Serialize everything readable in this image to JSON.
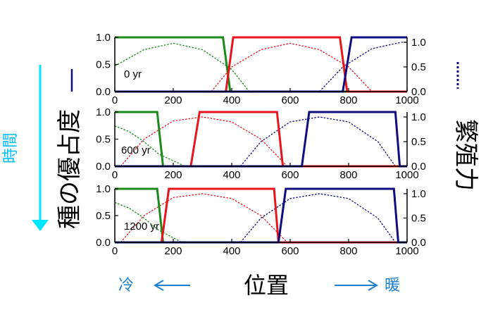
{
  "labels": {
    "time": "時間",
    "y_left": "種の優占度",
    "y_right": "繁殖力",
    "x_axis": "位置",
    "cold": "冷",
    "warm": "暖"
  },
  "colors": {
    "species_a": "#1a8a1a",
    "species_b": "#e8141c",
    "species_c": "#0d0d80",
    "time_arrow": "#00e5ff",
    "cold_warm": "#1a7fd0"
  },
  "chart_data": [
    {
      "type": "line",
      "annotation": "0 yr",
      "xlim": [
        0,
        1000
      ],
      "ylim_left": [
        0,
        1
      ],
      "ylim_right": [
        0,
        1.1
      ],
      "x_ticks": [
        "0",
        "200",
        "400",
        "600",
        "800",
        "1000"
      ],
      "y_ticks_left": [
        "0.0",
        "0.5",
        "1.0"
      ],
      "y_ticks_right": [
        "0.0",
        "0.5",
        "1.0"
      ],
      "dominance": [
        {
          "name": "",
          "color": "#1a8a1a",
          "x": [
            0,
            370,
            395,
            1000
          ],
          "y": [
            1,
            1,
            0,
            0
          ]
        },
        {
          "name": "",
          "color": "#e8141c",
          "x": [
            0,
            380,
            405,
            770,
            795,
            1000
          ],
          "y": [
            0,
            0,
            1,
            1,
            0,
            0
          ]
        },
        {
          "name": "",
          "color": "#0d0d80",
          "x": [
            0,
            780,
            810,
            1000
          ],
          "y": [
            0,
            0,
            1,
            1
          ]
        }
      ],
      "fecundity": [
        {
          "name": "",
          "color": "#1a8a1a",
          "x": [
            0,
            100,
            200,
            300,
            400,
            460
          ],
          "y": [
            0.52,
            0.85,
            0.98,
            0.85,
            0.45,
            0.0
          ]
        },
        {
          "name": "",
          "color": "#e8141c",
          "x": [
            330,
            400,
            500,
            600,
            700,
            800,
            880
          ],
          "y": [
            0.0,
            0.5,
            0.85,
            0.98,
            0.85,
            0.5,
            0.0
          ]
        },
        {
          "name": "",
          "color": "#0d0d80",
          "x": [
            700,
            780,
            880,
            980,
            1000
          ],
          "y": [
            0.0,
            0.5,
            0.87,
            1.0,
            1.0
          ]
        }
      ]
    },
    {
      "type": "line",
      "annotation": "600 yr",
      "xlim": [
        0,
        1000
      ],
      "ylim_left": [
        0,
        1
      ],
      "ylim_right": [
        0,
        1.1
      ],
      "x_ticks": [
        "0",
        "200",
        "400",
        "600",
        "800",
        "1000"
      ],
      "y_ticks_left": [
        "0.0",
        "0.5",
        "1.0"
      ],
      "y_ticks_right": [
        "0.0",
        "0.5",
        "1.0"
      ],
      "dominance": [
        {
          "name": "",
          "color": "#1a8a1a",
          "x": [
            0,
            145,
            165,
            1000
          ],
          "y": [
            1,
            1,
            0,
            0
          ]
        },
        {
          "name": "",
          "color": "#e8141c",
          "x": [
            0,
            260,
            290,
            555,
            575,
            1000
          ],
          "y": [
            0,
            0,
            1,
            1,
            0,
            0
          ]
        },
        {
          "name": "",
          "color": "#0d0d80",
          "x": [
            0,
            640,
            665,
            960,
            975,
            1000
          ],
          "y": [
            0,
            0,
            1,
            1,
            0,
            0
          ]
        }
      ],
      "fecundity": [
        {
          "name": "",
          "color": "#1a8a1a",
          "x": [
            0,
            50,
            100,
            150,
            240
          ],
          "y": [
            0.82,
            0.7,
            0.5,
            0.25,
            0.0
          ]
        },
        {
          "name": "",
          "color": "#e8141c",
          "x": [
            20,
            100,
            200,
            300,
            400,
            500,
            590
          ],
          "y": [
            0.0,
            0.55,
            0.92,
            1.0,
            0.9,
            0.55,
            0.0
          ]
        },
        {
          "name": "",
          "color": "#0d0d80",
          "x": [
            430,
            500,
            600,
            700,
            800,
            900,
            960
          ],
          "y": [
            0.0,
            0.5,
            0.9,
            1.0,
            0.9,
            0.5,
            0.0
          ]
        }
      ]
    },
    {
      "type": "line",
      "annotation": "1200 yr",
      "xlim": [
        0,
        1000
      ],
      "ylim_left": [
        0,
        1
      ],
      "ylim_right": [
        0,
        1.1
      ],
      "x_ticks": [
        "0",
        "200",
        "400",
        "600",
        "800",
        "1000"
      ],
      "y_ticks_left": [
        "0.0",
        "0.5",
        "1.0"
      ],
      "y_ticks_right": [
        "0.0",
        "0.5",
        "1.0"
      ],
      "dominance": [
        {
          "name": "",
          "color": "#1a8a1a",
          "x": [
            0,
            145,
            165,
            1000
          ],
          "y": [
            1,
            1,
            0,
            0
          ]
        },
        {
          "name": "",
          "color": "#e8141c",
          "x": [
            0,
            160,
            185,
            545,
            560,
            1000
          ],
          "y": [
            0,
            0,
            1,
            1,
            0,
            0
          ]
        },
        {
          "name": "",
          "color": "#0d0d80",
          "x": [
            0,
            560,
            585,
            955,
            970,
            1000
          ],
          "y": [
            0,
            0,
            1,
            1,
            0,
            0
          ]
        }
      ],
      "fecundity": [
        {
          "name": "",
          "color": "#1a8a1a",
          "x": [
            0,
            50,
            100,
            150,
            230
          ],
          "y": [
            0.82,
            0.7,
            0.5,
            0.25,
            0.0
          ]
        },
        {
          "name": "",
          "color": "#e8141c",
          "x": [
            20,
            100,
            200,
            300,
            400,
            500,
            590
          ],
          "y": [
            0.0,
            0.55,
            0.92,
            1.0,
            0.9,
            0.55,
            0.0
          ]
        },
        {
          "name": "",
          "color": "#0d0d80",
          "x": [
            430,
            500,
            600,
            700,
            800,
            900,
            960
          ],
          "y": [
            0.0,
            0.5,
            0.9,
            1.0,
            0.9,
            0.5,
            0.0
          ]
        }
      ]
    }
  ]
}
